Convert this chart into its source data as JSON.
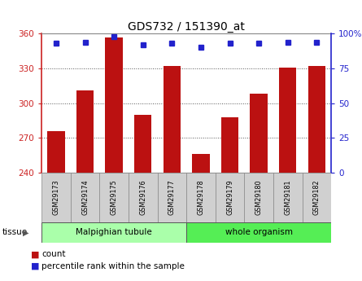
{
  "title": "GDS732 / 151390_at",
  "samples": [
    "GSM29173",
    "GSM29174",
    "GSM29175",
    "GSM29176",
    "GSM29177",
    "GSM29178",
    "GSM29179",
    "GSM29180",
    "GSM29181",
    "GSM29182"
  ],
  "counts": [
    276,
    311,
    357,
    290,
    332,
    256,
    288,
    308,
    331,
    332
  ],
  "percentiles": [
    93,
    94,
    98,
    92,
    93,
    90,
    93,
    93,
    94,
    94
  ],
  "ylim_left": [
    240,
    360
  ],
  "ylim_right": [
    0,
    100
  ],
  "yticks_left": [
    240,
    270,
    300,
    330,
    360
  ],
  "yticks_right": [
    0,
    25,
    50,
    75,
    100
  ],
  "bar_color": "#bb1111",
  "dot_color": "#2222cc",
  "groups": [
    {
      "label": "Malpighian tubule",
      "n": 5,
      "color": "#aaffaa"
    },
    {
      "label": "whole organism",
      "n": 5,
      "color": "#55ee55"
    }
  ],
  "tissue_label": "tissue",
  "legend_count_label": "count",
  "legend_pct_label": "percentile rank within the sample",
  "background_color": "#ffffff",
  "plot_bg_color": "#ffffff",
  "tick_label_bg": "#d0d0d0",
  "grid_color": "#555555",
  "right_axis_color": "#2222cc",
  "left_axis_color": "#cc2222"
}
